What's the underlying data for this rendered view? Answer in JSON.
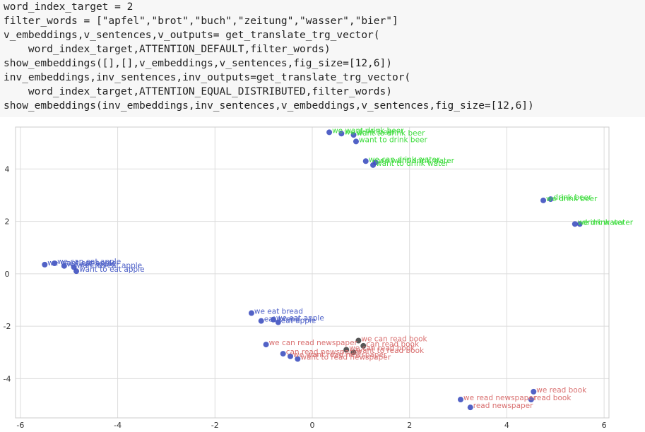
{
  "code_cell": {
    "lines": [
      "word_index_target = 2",
      "filter_words = [\"apfel\",\"brot\",\"buch\",\"zeitung\",\"wasser\",\"bier\"]",
      "v_embeddings,v_sentences,v_outputs= get_translate_trg_vector(",
      "    word_index_target,ATTENTION_DEFAULT,filter_words)",
      "show_embeddings([],[],v_embeddings,v_sentences,fig_size=[12,6])",
      "inv_embeddings,inv_sentences,inv_outputs=get_translate_trg_vector(",
      "    word_index_target,ATTENTION_EQUAL_DISTRIBUTED,filter_words)",
      "show_embeddings(inv_embeddings,inv_sentences,v_embeddings,v_sentences,fig_size=[12,6])"
    ]
  },
  "chart_data": {
    "type": "scatter",
    "xlim": [
      -6.1,
      6.1
    ],
    "ylim": [
      -5.5,
      5.6
    ],
    "xticks": [
      -6,
      -4,
      -2,
      0,
      2,
      4,
      6
    ],
    "yticks": [
      -4,
      -2,
      0,
      2,
      4
    ],
    "grid": true,
    "colors": {
      "blue": "#4c5fc7",
      "green": "#3ddc3d",
      "red": "#d97070",
      "point": "#3f51c0",
      "dark": "#444444"
    },
    "points": [
      {
        "x": 0.35,
        "y": 5.4,
        "label": "we want drink beer",
        "color": "green"
      },
      {
        "x": 0.6,
        "y": 5.35,
        "label": "we drink beer",
        "color": "green"
      },
      {
        "x": 0.85,
        "y": 5.3,
        "label": "want to drink beer",
        "color": "green"
      },
      {
        "x": 0.9,
        "y": 5.05,
        "label": "want to drink beer",
        "color": "green"
      },
      {
        "x": 1.1,
        "y": 4.3,
        "label": "we can drink water",
        "color": "green"
      },
      {
        "x": 1.3,
        "y": 4.25,
        "label": "we want drink water",
        "color": "green"
      },
      {
        "x": 1.25,
        "y": 4.15,
        "label": "want to drink water",
        "color": "green"
      },
      {
        "x": 4.75,
        "y": 2.8,
        "label": "we drink beer",
        "color": "green"
      },
      {
        "x": 4.9,
        "y": 2.85,
        "label": "drink beer",
        "color": "green"
      },
      {
        "x": 5.4,
        "y": 1.9,
        "label": "we drink water",
        "color": "green"
      },
      {
        "x": 5.5,
        "y": 1.9,
        "label": "drink water",
        "color": "green"
      },
      {
        "x": -5.5,
        "y": 0.35,
        "label": "we want eat apple",
        "color": "blue"
      },
      {
        "x": -5.3,
        "y": 0.4,
        "label": "we can eat apple",
        "color": "blue"
      },
      {
        "x": -5.1,
        "y": 0.3,
        "label": "we eat apple",
        "color": "blue"
      },
      {
        "x": -4.9,
        "y": 0.25,
        "label": "want to eat apple",
        "color": "blue"
      },
      {
        "x": -4.85,
        "y": 0.1,
        "label": "want to eat apple",
        "color": "blue"
      },
      {
        "x": -1.25,
        "y": -1.5,
        "label": "we eat bread",
        "color": "blue"
      },
      {
        "x": -1.05,
        "y": -1.8,
        "label": "eat bread",
        "color": "blue"
      },
      {
        "x": -0.8,
        "y": -1.75,
        "label": "we eat apple",
        "color": "blue"
      },
      {
        "x": -0.7,
        "y": -1.85,
        "label": "eat apple",
        "color": "blue"
      },
      {
        "x": -0.95,
        "y": -2.7,
        "label": "we can read newspaper",
        "color": "red"
      },
      {
        "x": 0.95,
        "y": -2.55,
        "label": "we can read book",
        "color": "red"
      },
      {
        "x": 1.05,
        "y": -2.75,
        "label": "can read book",
        "color": "red"
      },
      {
        "x": 0.7,
        "y": -2.9,
        "label": "we can read book",
        "color": "red"
      },
      {
        "x": 0.85,
        "y": -3.0,
        "label": "want to read book",
        "color": "red"
      },
      {
        "x": -0.6,
        "y": -3.05,
        "label": "can read newspaper",
        "color": "red"
      },
      {
        "x": -0.45,
        "y": -3.15,
        "label": "we want read newspaper",
        "color": "red"
      },
      {
        "x": -0.3,
        "y": -3.25,
        "label": "want to read newspaper",
        "color": "red"
      },
      {
        "x": 4.55,
        "y": -4.5,
        "label": "we read book",
        "color": "red"
      },
      {
        "x": 4.5,
        "y": -4.8,
        "label": "read book",
        "color": "red"
      },
      {
        "x": 3.05,
        "y": -4.8,
        "label": "we read newspaper",
        "color": "red"
      },
      {
        "x": 3.25,
        "y": -5.1,
        "label": "read newspaper",
        "color": "red"
      }
    ]
  }
}
